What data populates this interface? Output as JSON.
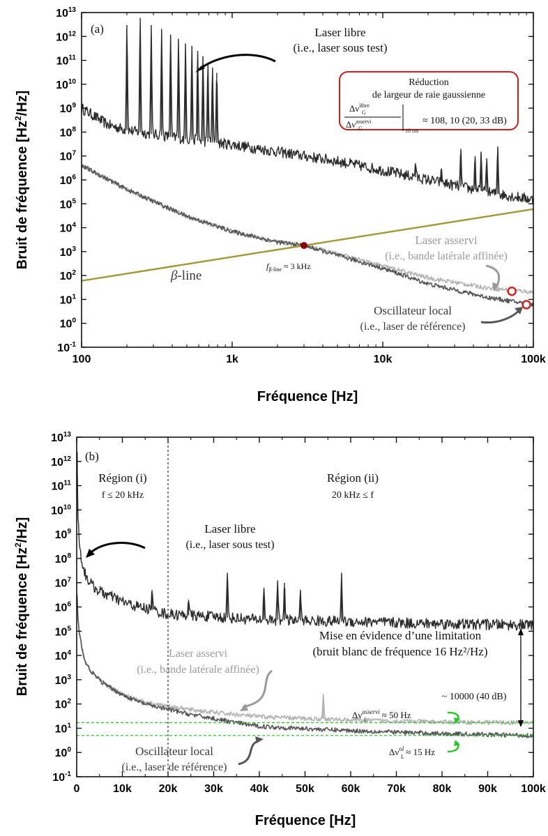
{
  "chart_data": [
    {
      "panel": "(a)",
      "type": "line",
      "x_scale": "log",
      "y_scale": "log",
      "xlabel": "Fréquence [Hz]",
      "ylabel": "Bruit de fréquence [Hz²/Hz]",
      "xlim": [
        100,
        100000
      ],
      "ylim": [
        0.1,
        10000000000000.0
      ],
      "x_ticks": [
        "100",
        "1k",
        "10k",
        "100k"
      ],
      "y_ticks": [
        {
          "base": "10",
          "exp": "-1"
        },
        {
          "base": "10",
          "exp": "0"
        },
        {
          "base": "10",
          "exp": "1"
        },
        {
          "base": "10",
          "exp": "2"
        },
        {
          "base": "10",
          "exp": "3"
        },
        {
          "base": "10",
          "exp": "4"
        },
        {
          "base": "10",
          "exp": "5"
        },
        {
          "base": "10",
          "exp": "6"
        },
        {
          "base": "10",
          "exp": "7"
        },
        {
          "base": "10",
          "exp": "8"
        },
        {
          "base": "10",
          "exp": "9"
        },
        {
          "base": "10",
          "exp": "10"
        },
        {
          "base": "10",
          "exp": "11"
        },
        {
          "base": "10",
          "exp": "12"
        },
        {
          "base": "10",
          "exp": "13"
        }
      ],
      "series": [
        {
          "name": "Laser libre",
          "color": "#2b2b2b",
          "x": [
            100,
            150,
            200,
            300,
            500,
            1000,
            2000,
            5000,
            10000,
            20000,
            50000,
            100000
          ],
          "y": [
            1000000000.0,
            200000000.0,
            120000000.0,
            80000000.0,
            50000000.0,
            30000000.0,
            15000000.0,
            6000000.0,
            2500000.0,
            1000000.0,
            300000.0,
            150000.0
          ],
          "peaks": [
            [
              200,
              3000000000000.0
            ],
            [
              245,
              6000000000000.0
            ],
            [
              290,
              3000000000000.0
            ],
            [
              340,
              2000000000000.0
            ],
            [
              390,
              1200000000000.0
            ],
            [
              440,
              800000000000.0
            ],
            [
              490,
              500000000000.0
            ],
            [
              540,
              400000000000.0
            ],
            [
              590,
              250000000000.0
            ],
            [
              640,
              150000000000.0
            ],
            [
              690,
              80000000000.0
            ],
            [
              740,
              50000000000.0
            ],
            [
              790,
              30000000000.0
            ],
            [
              16500,
              5000000.0
            ],
            [
              24500,
              3000000.0
            ],
            [
              33000,
              20000000.0
            ],
            [
              41000,
              10000000.0
            ],
            [
              45000,
              15000000.0
            ],
            [
              49000,
              8000000.0
            ],
            [
              58000,
              25000000.0
            ]
          ]
        },
        {
          "name": "Laser asservi",
          "color": "#b4b4b4",
          "x": [
            100,
            200,
            500,
            1000,
            2000,
            3000,
            5000,
            10000,
            20000,
            50000,
            100000
          ],
          "y": [
            4000000.0,
            400000.0,
            30000.0,
            7000.0,
            2500.0,
            1800.0,
            800.0,
            250.0,
            80,
            30,
            20
          ]
        },
        {
          "name": "Oscillateur local",
          "color": "#555555",
          "x": [
            100,
            200,
            500,
            1000,
            2000,
            3000,
            5000,
            10000,
            20000,
            50000,
            100000
          ],
          "y": [
            4000000.0,
            400000.0,
            30000.0,
            7000.0,
            2500.0,
            1800.0,
            700.0,
            200.0,
            45,
            12,
            6
          ]
        },
        {
          "name": "β-line",
          "color": "#a39a3a",
          "x": [
            100,
            100000
          ],
          "y": [
            60,
            60000
          ]
        }
      ],
      "points": [
        {
          "x": 3000,
          "y": 1800.0,
          "color": "#8b0000"
        },
        {
          "x": 72000,
          "y": 22,
          "color": "#d82020"
        },
        {
          "x": 90000,
          "y": 6,
          "color": "#d82020"
        }
      ]
    },
    {
      "panel": "(b)",
      "type": "line",
      "x_scale": "linear",
      "y_scale": "log",
      "xlabel": "Fréquence [Hz]",
      "ylabel": "Bruit de fréquence [Hz²/Hz]",
      "xlim": [
        0,
        100000
      ],
      "ylim": [
        0.1,
        10000000000000.0
      ],
      "x_ticks": [
        "0",
        "10k",
        "20k",
        "30k",
        "40k",
        "50k",
        "60k",
        "70k",
        "80k",
        "90k",
        "100k"
      ],
      "y_ticks": [
        {
          "base": "10",
          "exp": "-1"
        },
        {
          "base": "10",
          "exp": "0"
        },
        {
          "base": "10",
          "exp": "1"
        },
        {
          "base": "10",
          "exp": "2"
        },
        {
          "base": "10",
          "exp": "3"
        },
        {
          "base": "10",
          "exp": "4"
        },
        {
          "base": "10",
          "exp": "5"
        },
        {
          "base": "10",
          "exp": "6"
        },
        {
          "base": "10",
          "exp": "7"
        },
        {
          "base": "10",
          "exp": "8"
        },
        {
          "base": "10",
          "exp": "9"
        },
        {
          "base": "10",
          "exp": "10"
        },
        {
          "base": "10",
          "exp": "11"
        },
        {
          "base": "10",
          "exp": "12"
        },
        {
          "base": "10",
          "exp": "13"
        }
      ],
      "series": [
        {
          "name": "Laser libre",
          "color": "#2b2b2b",
          "x": [
            100,
            300,
            1000,
            2000,
            4000,
            8000,
            12000,
            16000,
            20000,
            30000,
            40000,
            60000,
            80000,
            100000
          ],
          "y": [
            3000000000000.0,
            5000000000.0,
            100000000.0,
            20000000.0,
            6000000.0,
            2500000.0,
            1200000.0,
            800000.0,
            500000.0,
            400000.0,
            300000.0,
            250000.0,
            200000.0,
            180000.0
          ],
          "peaks": [
            [
              16500,
              5000000.0
            ],
            [
              24500,
              2000000.0
            ],
            [
              33000,
              25000000.0
            ],
            [
              41000,
              6000000.0
            ],
            [
              44000,
              12000000.0
            ],
            [
              45500,
              10000000.0
            ],
            [
              49000,
              5000000.0
            ],
            [
              58000,
              25000000.0
            ],
            [
              65000,
              300000.0
            ],
            [
              80000,
              300000.0
            ],
            [
              89000,
              300000.0
            ]
          ]
        },
        {
          "name": "Laser asservi",
          "color": "#b4b4b4",
          "x": [
            100,
            300,
            1000,
            2000,
            4000,
            8000,
            15000,
            20000,
            30000,
            40000,
            60000,
            80000,
            100000
          ],
          "y": [
            3000000.0,
            300000.0,
            30000.0,
            5000.0,
            1500.0,
            400.0,
            120.0,
            80,
            45,
            30,
            22,
            18,
            17
          ],
          "peaks": [
            [
              54000,
              250
            ]
          ]
        },
        {
          "name": "Oscillateur local",
          "color": "#555555",
          "x": [
            100,
            300,
            1000,
            2000,
            4000,
            8000,
            15000,
            20000,
            30000,
            40000,
            60000,
            80000,
            100000
          ],
          "y": [
            3000000.0,
            300000.0,
            30000.0,
            5000.0,
            1500.0,
            400.0,
            100.0,
            60,
            25,
            12,
            8,
            6,
            5
          ]
        }
      ],
      "hlines": [
        {
          "y": 17,
          "color": "#22cc22"
        },
        {
          "y": 5,
          "color": "#22cc22"
        }
      ],
      "vlines": [
        {
          "x": 20000
        }
      ]
    }
  ],
  "panel_a": {
    "label": "(a)",
    "ann_libre_1": "Laser libre",
    "ann_libre_2": "(i.e., laser sous test)",
    "box_title_1": "Réduction",
    "box_title_2": "de largeur de raie gaussienne",
    "box_num": "Δν",
    "box_num_sup": "libre",
    "box_num_sub": "G",
    "box_den": "Δν",
    "box_den_sup": "asservi",
    "box_den_sub": "G",
    "box_eval": "10 ms",
    "box_result": "≈ 108, 10 (20, 33 dB)",
    "beta_prefix": "β",
    "beta_suffix": "-line",
    "fbeta_prefix": "f",
    "fbeta_sub": "β-line",
    "fbeta_value": "≈ 3 kHz",
    "ann_asservi_1": "Laser asservi",
    "ann_asservi_2": "(i.e., bande latérale affinée)",
    "ann_ol_1": "Oscillateur local",
    "ann_ol_2": "(i.e., laser de référence)"
  },
  "panel_b": {
    "label": "(b)",
    "region1": "Région (i)",
    "region1_cond": "f ≤ 20 kHz",
    "region2": "Région (ii)",
    "region2_cond": "20 kHz ≤ f",
    "ann_libre_1": "Laser libre",
    "ann_libre_2": "(i.e., laser sous test)",
    "ann_asservi_1": "Laser asservi",
    "ann_asservi_2": "(i.e., bande latérale affinée)",
    "ann_limit_1": "Mise en évidence d’une limitation",
    "ann_limit_2": "(bruit blanc de fréquence 16 Hz²/Hz)",
    "ann_ratio": "~ 10000 (40 dB)",
    "ann_dv_asservi_prefix": "Δν",
    "ann_dv_asservi_sup": "asservi",
    "ann_dv_asservi_sub": "L",
    "ann_dv_asservi_value": "≈ 50 Hz",
    "ann_dv_ol_prefix": "Δν",
    "ann_dv_ol_sup": "ol",
    "ann_dv_ol_sub": "L",
    "ann_dv_ol_value": "≈ 15 Hz",
    "ann_ol_1": "Oscillateur local",
    "ann_ol_2": "(i.e., laser de référence)"
  }
}
